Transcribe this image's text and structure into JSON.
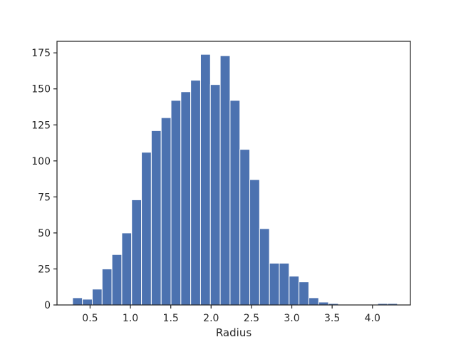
{
  "chart_data": {
    "type": "bar",
    "title": "",
    "xlabel": "Radius",
    "ylabel": "",
    "xlim": [
      0.09,
      4.47
    ],
    "ylim": [
      0,
      183
    ],
    "grid": false,
    "bar_color": "#4c72b0",
    "bin_width": 0.122,
    "bins": [
      {
        "x0": 0.283,
        "count": 5
      },
      {
        "x0": 0.405,
        "count": 4
      },
      {
        "x0": 0.527,
        "count": 11
      },
      {
        "x0": 0.649,
        "count": 25
      },
      {
        "x0": 0.771,
        "count": 35
      },
      {
        "x0": 0.893,
        "count": 50
      },
      {
        "x0": 1.015,
        "count": 73
      },
      {
        "x0": 1.137,
        "count": 106
      },
      {
        "x0": 1.259,
        "count": 121
      },
      {
        "x0": 1.381,
        "count": 130
      },
      {
        "x0": 1.503,
        "count": 142
      },
      {
        "x0": 1.625,
        "count": 148
      },
      {
        "x0": 1.747,
        "count": 156
      },
      {
        "x0": 1.869,
        "count": 174
      },
      {
        "x0": 1.991,
        "count": 153
      },
      {
        "x0": 2.113,
        "count": 173
      },
      {
        "x0": 2.235,
        "count": 142
      },
      {
        "x0": 2.357,
        "count": 108
      },
      {
        "x0": 2.479,
        "count": 87
      },
      {
        "x0": 2.601,
        "count": 53
      },
      {
        "x0": 2.723,
        "count": 29
      },
      {
        "x0": 2.845,
        "count": 29
      },
      {
        "x0": 2.967,
        "count": 20
      },
      {
        "x0": 3.089,
        "count": 16
      },
      {
        "x0": 3.211,
        "count": 5
      },
      {
        "x0": 3.333,
        "count": 2
      },
      {
        "x0": 3.455,
        "count": 1
      },
      {
        "x0": 3.577,
        "count": 0
      },
      {
        "x0": 3.699,
        "count": 0
      },
      {
        "x0": 3.821,
        "count": 0
      },
      {
        "x0": 3.943,
        "count": 0
      },
      {
        "x0": 4.065,
        "count": 1
      },
      {
        "x0": 4.187,
        "count": 1
      }
    ],
    "xticks": [
      {
        "value": 0.5,
        "label": "0.5"
      },
      {
        "value": 1.0,
        "label": "1.0"
      },
      {
        "value": 1.5,
        "label": "1.5"
      },
      {
        "value": 2.0,
        "label": "2.0"
      },
      {
        "value": 2.5,
        "label": "2.5"
      },
      {
        "value": 3.0,
        "label": "3.0"
      },
      {
        "value": 3.5,
        "label": "3.5"
      },
      {
        "value": 4.0,
        "label": "4.0"
      }
    ],
    "yticks": [
      {
        "value": 0,
        "label": "0"
      },
      {
        "value": 25,
        "label": "25"
      },
      {
        "value": 50,
        "label": "50"
      },
      {
        "value": 75,
        "label": "75"
      },
      {
        "value": 100,
        "label": "100"
      },
      {
        "value": 125,
        "label": "125"
      },
      {
        "value": 150,
        "label": "150"
      },
      {
        "value": 175,
        "label": "175"
      }
    ]
  }
}
